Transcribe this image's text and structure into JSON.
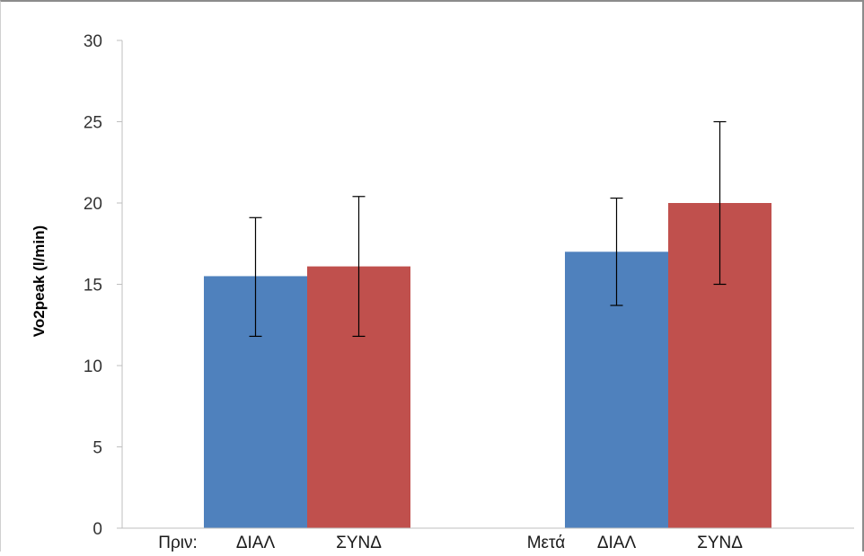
{
  "chart_data": {
    "type": "bar",
    "title": "",
    "xlabel": "",
    "ylabel": "Vo2peak (l/min)",
    "ylim": [
      0,
      30
    ],
    "yticks": [
      0,
      5,
      10,
      15,
      20,
      25,
      30
    ],
    "grid": false,
    "legend": "none",
    "groups": [
      {
        "label": "Πριν:",
        "bars": [
          {
            "label": "ΔΙΑΛ",
            "value": 15.5,
            "err_low": 11.8,
            "err_high": 19.1,
            "color": "#4f81bd"
          },
          {
            "label": "ΣΥΝΔ",
            "value": 16.1,
            "err_low": 11.8,
            "err_high": 20.4,
            "color": "#c0504d"
          }
        ]
      },
      {
        "label": "Μετά",
        "bars": [
          {
            "label": "ΔΙΑΛ",
            "value": 17.0,
            "err_low": 13.7,
            "err_high": 20.3,
            "color": "#4f81bd"
          },
          {
            "label": "ΣΥΝΔ",
            "value": 20.0,
            "err_low": 15.0,
            "err_high": 25.0,
            "color": "#c0504d"
          }
        ]
      }
    ]
  }
}
